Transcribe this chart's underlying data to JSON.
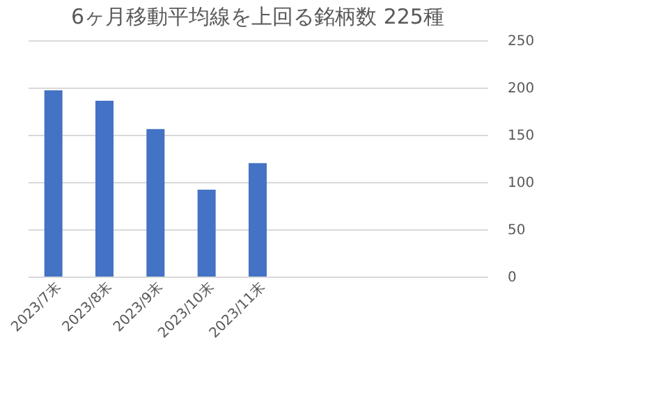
{
  "chart_data": {
    "type": "bar",
    "title": "6ヶ月移動平均線を上回る銘柄数 225種",
    "categories": [
      "2023/7末",
      "2023/8末",
      "2023/9末",
      "2023/10末",
      "2023/11末",
      null,
      null,
      null,
      null
    ],
    "values": [
      197,
      186,
      156,
      92,
      120,
      null,
      null,
      null,
      null
    ],
    "color": "#4472c4",
    "ylim": [
      0,
      250
    ],
    "yticks": [
      0,
      50,
      100,
      150,
      200,
      250
    ],
    "grid": "y"
  }
}
